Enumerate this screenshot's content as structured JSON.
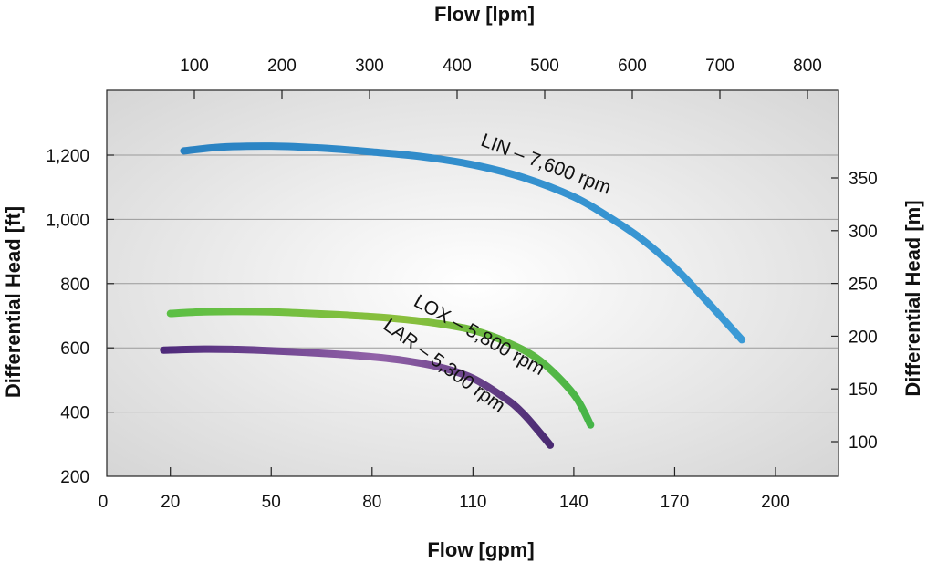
{
  "chart_data": {
    "type": "line",
    "xlabel": "Flow [gpm]",
    "ylabel": "Differential Head [ft]",
    "x2label": "Flow [lpm]",
    "y2label": "Differential Head [m]",
    "xlim": [
      0,
      220
    ],
    "ylim": [
      200,
      1400
    ],
    "x_ticks": [
      0,
      20,
      50,
      80,
      110,
      140,
      170,
      200
    ],
    "y_ticks": [
      200,
      400,
      600,
      800,
      1000,
      1200
    ],
    "y_tick_labels": [
      "200",
      "400",
      "600",
      "800",
      "1,000",
      "1,200"
    ],
    "x2_ticks": [
      100,
      200,
      300,
      400,
      500,
      600,
      700,
      800
    ],
    "y2_ticks": [
      100,
      150,
      200,
      250,
      300,
      350
    ],
    "grid": "horizontal",
    "series": [
      {
        "name": "LIN – 7,600 rpm",
        "color": "#2f8dcc",
        "x": [
          24,
          35,
          50,
          65,
          80,
          95,
          110,
          125,
          140,
          150,
          160,
          170,
          180,
          190
        ],
        "y": [
          1213,
          1225,
          1228,
          1222,
          1210,
          1195,
          1170,
          1130,
          1070,
          1010,
          940,
          850,
          740,
          625
        ]
      },
      {
        "name": "LOX – 5,800 rpm",
        "color": "#4fb84a",
        "x": [
          20,
          30,
          40,
          50,
          60,
          70,
          80,
          90,
          100,
          110,
          120,
          130,
          140,
          145
        ],
        "y": [
          707,
          712,
          713,
          712,
          708,
          703,
          697,
          688,
          675,
          655,
          618,
          560,
          455,
          360
        ]
      },
      {
        "name": "LAR – 5,300 rpm",
        "color": "#7a3f94",
        "x": [
          18,
          30,
          40,
          50,
          60,
          70,
          80,
          90,
          100,
          110,
          120,
          125,
          130,
          133
        ],
        "y": [
          593,
          596,
          595,
          591,
          586,
          580,
          572,
          560,
          540,
          505,
          440,
          395,
          335,
          297
        ]
      }
    ]
  }
}
